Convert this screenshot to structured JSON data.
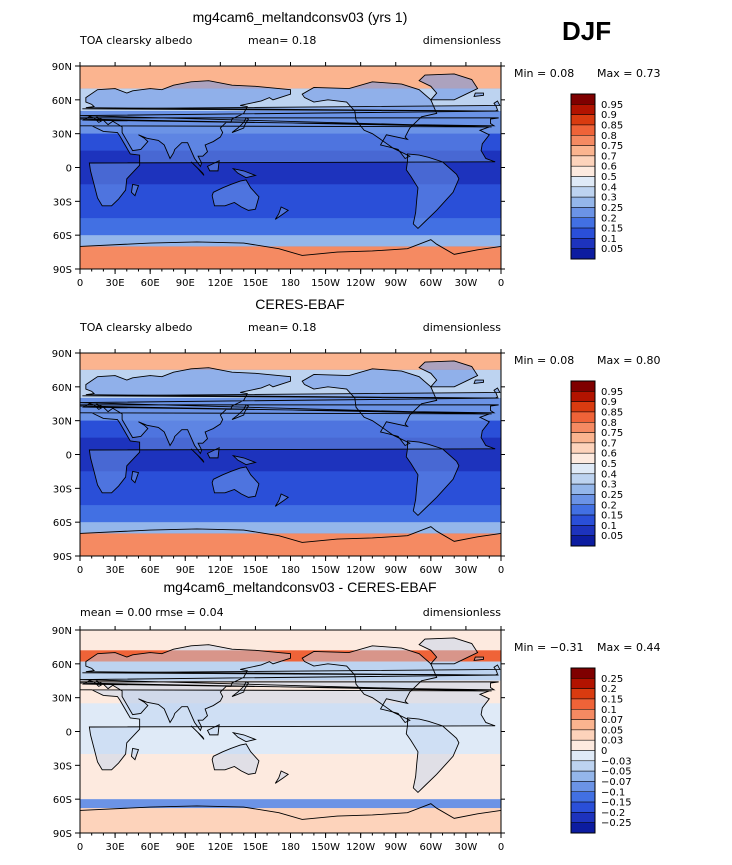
{
  "season": "DJF",
  "chart_data": [
    {
      "type": "heatmap",
      "title": "mg4cam6_meltandconsv03 (yrs 1)",
      "variable": "TOA clearsky albedo",
      "units": "dimensionless",
      "stat_text": "mean=   0.18",
      "min_text": "Min =   0.08",
      "max_text": "Max =   0.73",
      "x_ticks": [
        "0",
        "30E",
        "60E",
        "90E",
        "120E",
        "150E",
        "180",
        "150W",
        "120W",
        "90W",
        "60W",
        "30W",
        "0"
      ],
      "y_ticks": [
        "90N",
        "60N",
        "30N",
        "0",
        "30S",
        "60S",
        "90S"
      ],
      "levels": [
        "0.95",
        "0.9",
        "0.85",
        "0.8",
        "0.75",
        "0.7",
        "0.6",
        "0.5",
        "0.4",
        "0.3",
        "0.25",
        "0.2",
        "0.15",
        "0.1",
        "0.05"
      ],
      "colors": [
        "#7f0000",
        "#b21300",
        "#d93b10",
        "#ef6338",
        "#f58a62",
        "#fbb48f",
        "#fdd3bb",
        "#fdeadf",
        "#dfeaf7",
        "#bdd3f0",
        "#94b6ea",
        "#6b93e6",
        "#4270e3",
        "#2a4fd8",
        "#1d33bd",
        "#0c1ca0"
      ],
      "mean": 0.18,
      "bands": [
        {
          "lat": [
            70,
            90
          ],
          "value": 0.72
        },
        {
          "lat": [
            50,
            70
          ],
          "value": 0.3
        },
        {
          "lat": [
            30,
            50
          ],
          "value": 0.22
        },
        {
          "lat": [
            15,
            30
          ],
          "value": 0.13
        },
        {
          "lat": [
            -15,
            15
          ],
          "value": 0.09
        },
        {
          "lat": [
            -45,
            -15
          ],
          "value": 0.11
        },
        {
          "lat": [
            -60,
            -45
          ],
          "value": 0.17
        },
        {
          "lat": [
            -70,
            -60
          ],
          "value": 0.26
        },
        {
          "lat": [
            -90,
            -70
          ],
          "value": 0.75
        }
      ]
    },
    {
      "type": "heatmap",
      "title": "CERES-EBAF",
      "variable": "TOA clearsky albedo",
      "units": "dimensionless",
      "stat_text": "mean=   0.18",
      "min_text": "Min =   0.08",
      "max_text": "Max =   0.80",
      "x_ticks": [
        "0",
        "30E",
        "60E",
        "90E",
        "120E",
        "150E",
        "180",
        "150W",
        "120W",
        "90W",
        "60W",
        "30W",
        "0"
      ],
      "y_ticks": [
        "90N",
        "60N",
        "30N",
        "0",
        "30S",
        "60S",
        "90S"
      ],
      "levels": [
        "0.95",
        "0.9",
        "0.85",
        "0.8",
        "0.75",
        "0.7",
        "0.6",
        "0.5",
        "0.4",
        "0.3",
        "0.25",
        "0.2",
        "0.15",
        "0.1",
        "0.05"
      ],
      "colors": [
        "#7f0000",
        "#b21300",
        "#d93b10",
        "#ef6338",
        "#f58a62",
        "#fbb48f",
        "#fdd3bb",
        "#fdeadf",
        "#dfeaf7",
        "#bdd3f0",
        "#94b6ea",
        "#6b93e6",
        "#4270e3",
        "#2a4fd8",
        "#1d33bd",
        "#0c1ca0"
      ],
      "mean": 0.18,
      "bands": [
        {
          "lat": [
            75,
            90
          ],
          "value": 0.72
        },
        {
          "lat": [
            50,
            75
          ],
          "value": 0.3
        },
        {
          "lat": [
            30,
            50
          ],
          "value": 0.2
        },
        {
          "lat": [
            15,
            30
          ],
          "value": 0.13
        },
        {
          "lat": [
            -15,
            15
          ],
          "value": 0.09
        },
        {
          "lat": [
            -45,
            -15
          ],
          "value": 0.1
        },
        {
          "lat": [
            -60,
            -45
          ],
          "value": 0.16
        },
        {
          "lat": [
            -70,
            -60
          ],
          "value": 0.27
        },
        {
          "lat": [
            -90,
            -70
          ],
          "value": 0.75
        }
      ]
    },
    {
      "type": "heatmap",
      "title": "mg4cam6_meltandconsv03 - CERES-EBAF",
      "variable": "",
      "units": "dimensionless",
      "stat_text": "mean =     0.00                rmse =     0.04",
      "min_text": "Min =   −0.31",
      "max_text": "Max =    0.44",
      "x_ticks": [
        "0",
        "30E",
        "60E",
        "90E",
        "120E",
        "150E",
        "180",
        "150W",
        "120W",
        "90W",
        "60W",
        "30W",
        "0"
      ],
      "y_ticks": [
        "90N",
        "60N",
        "30N",
        "0",
        "30S",
        "60S",
        "90S"
      ],
      "levels": [
        "0.25",
        "0.2",
        "0.15",
        "0.1",
        "0.07",
        "0.05",
        "0.03",
        "0",
        "−0.03",
        "−0.05",
        "−0.07",
        "−0.1",
        "−0.15",
        "−0.2",
        "−0.25"
      ],
      "colors": [
        "#7f0000",
        "#b21300",
        "#d93b10",
        "#ef6338",
        "#f58a62",
        "#fbb48f",
        "#fdd3bb",
        "#fdeadf",
        "#dfeaf7",
        "#bdd3f0",
        "#94b6ea",
        "#6b93e6",
        "#4270e3",
        "#2a4fd8",
        "#1d33bd",
        "#0c1ca0"
      ],
      "mean": 0.0,
      "rmse": 0.04,
      "bands": [
        {
          "lat": [
            72,
            90
          ],
          "value": 0.0
        },
        {
          "lat": [
            62,
            72
          ],
          "value": 0.12
        },
        {
          "lat": [
            45,
            62
          ],
          "value": -0.05
        },
        {
          "lat": [
            25,
            45
          ],
          "value": 0.02
        },
        {
          "lat": [
            -20,
            25
          ],
          "value": -0.02
        },
        {
          "lat": [
            -45,
            -20
          ],
          "value": 0.02
        },
        {
          "lat": [
            -60,
            -45
          ],
          "value": 0.02
        },
        {
          "lat": [
            -68,
            -60
          ],
          "value": -0.1
        },
        {
          "lat": [
            -90,
            -68
          ],
          "value": 0.03
        }
      ]
    }
  ]
}
